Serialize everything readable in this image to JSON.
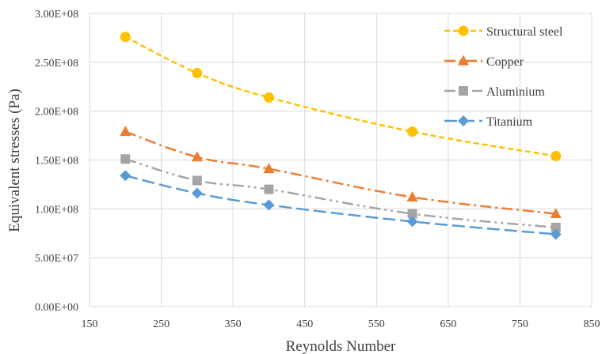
{
  "chart_data": {
    "type": "line",
    "title": "",
    "xlabel": "Reynolds Number",
    "ylabel": "Equivalent stresses  (Pa)",
    "xlim": [
      150,
      850
    ],
    "ylim": [
      0,
      300000000
    ],
    "x_ticks": [
      150,
      250,
      350,
      450,
      550,
      650,
      750,
      850
    ],
    "x_tick_labels": [
      "150",
      "250",
      "350",
      "450",
      "550",
      "650",
      "750",
      "850"
    ],
    "y_ticks": [
      0,
      50000000,
      100000000,
      150000000,
      200000000,
      250000000,
      300000000
    ],
    "y_tick_labels": [
      "0.00E+00",
      "5.00E+07",
      "1.00E+08",
      "1.50E+08",
      "2.00E+08",
      "2.50E+08",
      "3.00E+08"
    ],
    "grid": "vertical and horizontal",
    "legend_position": "top-right",
    "x": [
      200,
      300,
      400,
      600,
      800
    ],
    "series": [
      {
        "name": "Structural steel",
        "values": [
          276000000,
          239000000,
          214000000,
          179000000,
          154000000
        ],
        "color": "#FFC000",
        "marker": "circle",
        "dash": "dashed"
      },
      {
        "name": "Copper",
        "values": [
          179000000,
          153000000,
          141000000,
          112000000,
          95000000
        ],
        "color": "#ED7D31",
        "marker": "triangle",
        "dash": "dash-dot"
      },
      {
        "name": "Aluminium",
        "values": [
          151000000,
          129000000,
          120000000,
          95000000,
          81000000
        ],
        "color": "#A5A5A5",
        "marker": "square",
        "dash": "dash-dot-dot"
      },
      {
        "name": "Titanium",
        "values": [
          134000000,
          116000000,
          104000000,
          87000000,
          74000000
        ],
        "color": "#5B9BD5",
        "marker": "diamond",
        "dash": "long-dash"
      }
    ]
  }
}
